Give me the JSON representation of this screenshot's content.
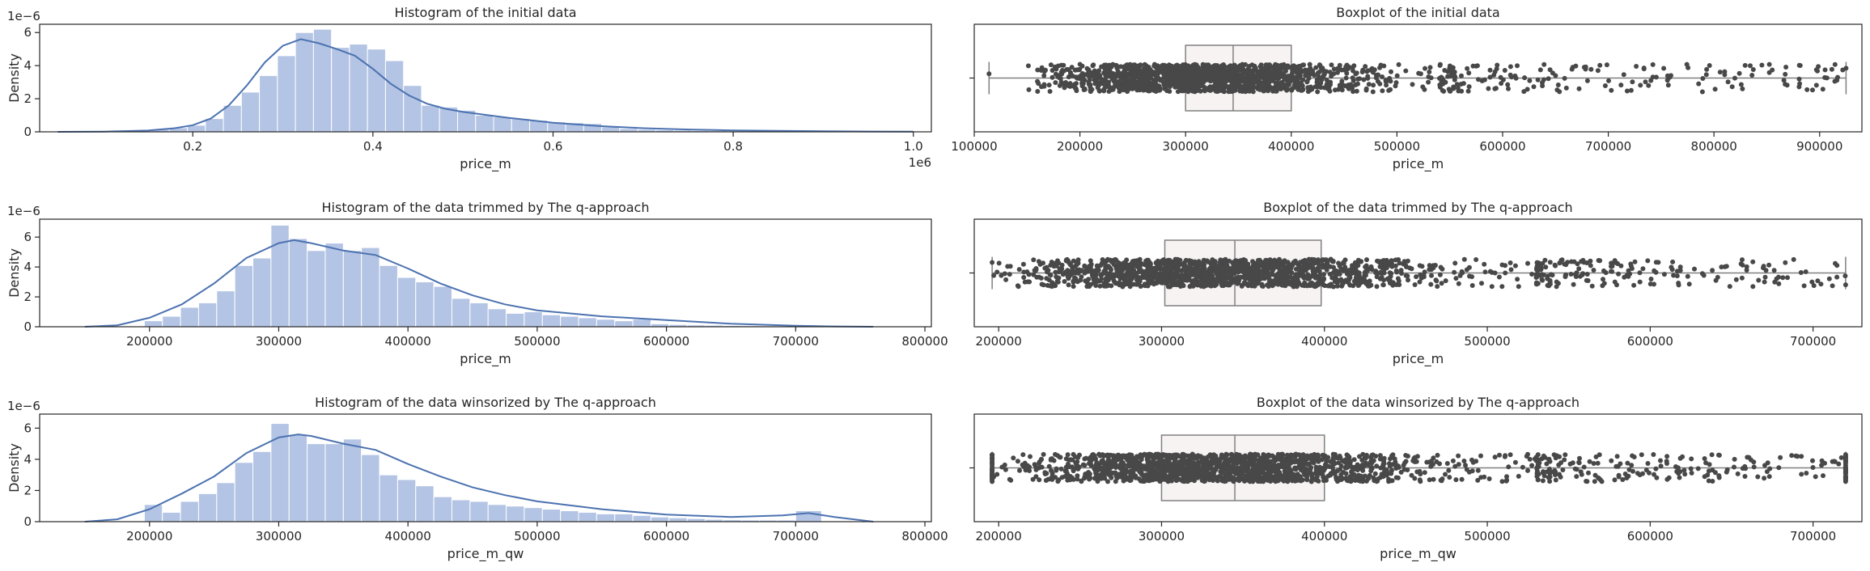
{
  "chart_data": [
    {
      "type": "histogram",
      "title": "Histogram of the initial data",
      "xlabel": "price_m",
      "ylabel": "Density",
      "y_multiplier_label": "1e−6",
      "x_offset_label": "1e6",
      "xlim": [
        0.03,
        1.02
      ],
      "ylim": [
        0,
        6.5
      ],
      "xticks": [
        0.2,
        0.4,
        0.6,
        0.8,
        1.0
      ],
      "xtick_labels": [
        "0.2",
        "0.4",
        "0.6",
        "0.8",
        "1.0"
      ],
      "yticks": [
        0,
        2,
        4,
        6
      ],
      "ytick_labels": [
        "0",
        "2",
        "4",
        "6"
      ],
      "bin_edges": [
        0.114,
        0.134,
        0.154,
        0.174,
        0.194,
        0.214,
        0.234,
        0.254,
        0.274,
        0.294,
        0.314,
        0.334,
        0.354,
        0.374,
        0.394,
        0.414,
        0.434,
        0.454,
        0.474,
        0.494,
        0.514,
        0.534,
        0.554,
        0.574,
        0.594,
        0.614,
        0.634,
        0.654,
        0.674,
        0.694,
        0.714,
        0.734,
        0.754,
        0.774,
        0.794,
        0.814,
        0.834,
        0.854,
        0.874,
        0.894,
        0.914,
        0.934
      ],
      "values": [
        0.05,
        0.1,
        0.15,
        0.25,
        0.4,
        0.8,
        1.6,
        2.4,
        3.4,
        4.6,
        6.0,
        6.2,
        5.1,
        5.3,
        5.0,
        4.3,
        2.8,
        1.6,
        1.5,
        1.3,
        1.0,
        0.9,
        0.8,
        0.7,
        0.6,
        0.55,
        0.5,
        0.3,
        0.2,
        0.15,
        0.12,
        0.1,
        0.08,
        0.07,
        0.06,
        0.05,
        0.04,
        0.03,
        0.02,
        0.02,
        0.02
      ],
      "kde_x": [
        0.05,
        0.1,
        0.15,
        0.18,
        0.2,
        0.22,
        0.24,
        0.26,
        0.28,
        0.3,
        0.32,
        0.34,
        0.36,
        0.38,
        0.4,
        0.42,
        0.44,
        0.46,
        0.48,
        0.5,
        0.55,
        0.6,
        0.65,
        0.7,
        0.75,
        0.8,
        0.85,
        0.9,
        0.95,
        1.0
      ],
      "kde_y": [
        0.0,
        0.01,
        0.08,
        0.22,
        0.4,
        0.8,
        1.6,
        2.8,
        4.2,
        5.2,
        5.6,
        5.35,
        5.0,
        4.6,
        3.8,
        2.9,
        2.2,
        1.7,
        1.4,
        1.2,
        0.85,
        0.55,
        0.35,
        0.22,
        0.14,
        0.09,
        0.06,
        0.04,
        0.02,
        0.01
      ]
    },
    {
      "type": "boxplot",
      "title": "Boxplot of the initial data",
      "xlabel": "price_m",
      "xlim": [
        100000,
        940000
      ],
      "xticks": [
        100000,
        200000,
        300000,
        400000,
        500000,
        600000,
        700000,
        800000,
        900000
      ],
      "xtick_labels": [
        "100000",
        "200000",
        "300000",
        "400000",
        "500000",
        "600000",
        "700000",
        "800000",
        "900000"
      ],
      "whisker_low": 114000,
      "q1": 300000,
      "median": 345000,
      "q3": 400000,
      "whisker_high": 925000,
      "strip_dense_range": [
        150000,
        540000
      ],
      "strip_sparse_range": [
        540000,
        925000
      ]
    },
    {
      "type": "histogram",
      "title": "Histogram of the data trimmed by The q-approach",
      "xlabel": "price_m",
      "ylabel": "Density",
      "y_multiplier_label": "1e−6",
      "xlim": [
        115000,
        805000
      ],
      "ylim": [
        0,
        7.2
      ],
      "xticks": [
        200000,
        300000,
        400000,
        500000,
        600000,
        700000,
        800000
      ],
      "xtick_labels": [
        "200000",
        "300000",
        "400000",
        "500000",
        "600000",
        "700000",
        "800000"
      ],
      "yticks": [
        0,
        2,
        4,
        6
      ],
      "ytick_labels": [
        "0",
        "2",
        "4",
        "6"
      ],
      "bin_edges": [
        196000,
        210000,
        224000,
        238000,
        252000,
        266000,
        280000,
        294000,
        308000,
        322000,
        336000,
        350000,
        364000,
        378000,
        392000,
        406000,
        420000,
        434000,
        448000,
        462000,
        476000,
        490000,
        504000,
        518000,
        532000,
        546000,
        560000,
        574000,
        588000,
        602000,
        616000,
        630000,
        644000,
        658000,
        672000,
        686000,
        700000,
        714000,
        720000
      ],
      "values": [
        0.4,
        0.7,
        1.3,
        1.6,
        2.4,
        4.1,
        4.6,
        6.8,
        5.9,
        5.1,
        5.6,
        5.1,
        5.3,
        4.1,
        3.3,
        3.0,
        2.7,
        1.9,
        1.6,
        1.2,
        0.9,
        1.0,
        0.8,
        0.7,
        0.6,
        0.5,
        0.4,
        0.5,
        0.2,
        0.15,
        0.12,
        0.1,
        0.08,
        0.07,
        0.06,
        0.05,
        0.05,
        0.05
      ],
      "kde_x": [
        150000,
        175000,
        200000,
        225000,
        250000,
        275000,
        300000,
        312000,
        325000,
        350000,
        375000,
        400000,
        425000,
        450000,
        475000,
        500000,
        550000,
        600000,
        650000,
        700000,
        730000,
        760000
      ],
      "kde_y": [
        0.0,
        0.1,
        0.6,
        1.5,
        2.9,
        4.6,
        5.6,
        5.8,
        5.6,
        5.1,
        4.8,
        3.9,
        2.9,
        2.1,
        1.5,
        1.1,
        0.7,
        0.45,
        0.2,
        0.07,
        0.02,
        0.0
      ]
    },
    {
      "type": "boxplot",
      "title": "Boxplot of the data trimmed by The q-approach",
      "xlabel": "price_m",
      "xlim": [
        185000,
        730000
      ],
      "xticks": [
        200000,
        300000,
        400000,
        500000,
        600000,
        700000
      ],
      "xtick_labels": [
        "200000",
        "300000",
        "400000",
        "500000",
        "600000",
        "700000"
      ],
      "whisker_low": 196000,
      "q1": 302000,
      "median": 345000,
      "q3": 398000,
      "whisker_high": 720000,
      "strip_dense_range": [
        196000,
        530000
      ],
      "strip_sparse_range": [
        530000,
        720000
      ]
    },
    {
      "type": "histogram",
      "title": "Histogram of the data winsorized by The q-approach",
      "xlabel": "price_m_qw",
      "ylabel": "Density",
      "y_multiplier_label": "1e−6",
      "xlim": [
        115000,
        805000
      ],
      "ylim": [
        0,
        6.9
      ],
      "xticks": [
        200000,
        300000,
        400000,
        500000,
        600000,
        700000,
        800000
      ],
      "xtick_labels": [
        "200000",
        "300000",
        "400000",
        "500000",
        "600000",
        "700000",
        "800000"
      ],
      "yticks": [
        0,
        2,
        4,
        6
      ],
      "ytick_labels": [
        "0",
        "2",
        "4",
        "6"
      ],
      "bin_edges": [
        196000,
        210000,
        224000,
        238000,
        252000,
        266000,
        280000,
        294000,
        308000,
        322000,
        336000,
        350000,
        364000,
        378000,
        392000,
        406000,
        420000,
        434000,
        448000,
        462000,
        476000,
        490000,
        504000,
        518000,
        532000,
        546000,
        560000,
        574000,
        588000,
        602000,
        616000,
        630000,
        644000,
        658000,
        672000,
        686000,
        700000,
        720000
      ],
      "values": [
        1.1,
        0.6,
        1.3,
        1.8,
        2.5,
        3.8,
        4.5,
        6.3,
        5.6,
        5.0,
        5.0,
        5.3,
        4.3,
        3.0,
        2.7,
        2.3,
        1.6,
        1.4,
        1.3,
        1.1,
        1.0,
        0.9,
        0.8,
        0.7,
        0.6,
        0.5,
        0.5,
        0.4,
        0.3,
        0.25,
        0.2,
        0.15,
        0.12,
        0.1,
        0.1,
        0.1,
        0.7
      ],
      "kde_x": [
        150000,
        175000,
        200000,
        225000,
        250000,
        275000,
        300000,
        315000,
        325000,
        350000,
        375000,
        400000,
        425000,
        450000,
        475000,
        500000,
        550000,
        600000,
        650000,
        690000,
        710000,
        730000,
        760000
      ],
      "kde_y": [
        0.0,
        0.15,
        0.8,
        1.8,
        2.9,
        4.4,
        5.4,
        5.6,
        5.5,
        5.0,
        4.6,
        3.7,
        2.9,
        2.2,
        1.7,
        1.3,
        0.8,
        0.45,
        0.3,
        0.4,
        0.55,
        0.3,
        0.0
      ]
    },
    {
      "type": "boxplot",
      "title": "Boxplot of the data winsorized by The q-approach",
      "xlabel": "price_m_qw",
      "xlim": [
        185000,
        730000
      ],
      "xticks": [
        200000,
        300000,
        400000,
        500000,
        600000,
        700000
      ],
      "xtick_labels": [
        "200000",
        "300000",
        "400000",
        "500000",
        "600000",
        "700000"
      ],
      "whisker_low": 196000,
      "q1": 300000,
      "median": 345000,
      "q3": 400000,
      "whisker_high": 720000,
      "strip_dense_range": [
        196000,
        530000
      ],
      "strip_sparse_range": [
        530000,
        720000
      ],
      "strip_edge_clusters": [
        196000,
        720000
      ]
    }
  ],
  "colors": {
    "hist_fill": "#b4c4e4",
    "kde_line": "#4c72b0",
    "box_fill": "#f8f3f3",
    "box_edge": "#808080",
    "strip_point": "#484848"
  }
}
